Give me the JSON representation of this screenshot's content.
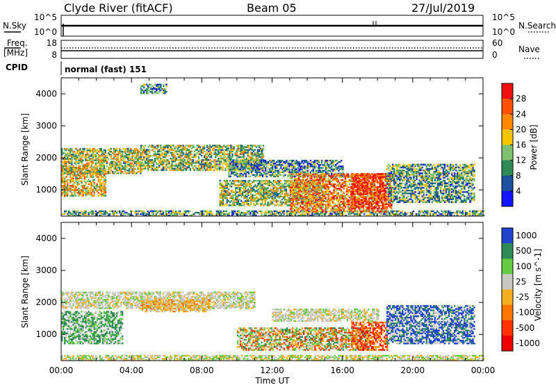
{
  "header": {
    "title": "Clyde River (fitACF)",
    "beam": "Beam 05",
    "date": "27/Jul/2019"
  },
  "nsky_panel": {
    "left_label": "N.Sky",
    "left_ticks": [
      "10^5",
      "10^0"
    ],
    "right_ticks": [
      "10^5",
      "10^0"
    ],
    "right_label": "N.Search"
  },
  "freq_panel": {
    "left_label_1": "Freq.",
    "left_label_2": "[MHz]",
    "left_ticks": [
      "18",
      "8"
    ],
    "right_ticks": [
      "60",
      "0"
    ],
    "right_label": "Nave"
  },
  "cpid": {
    "label": "CPID",
    "value": "normal (fast) 151"
  },
  "chart_data": [
    {
      "type": "heatmap",
      "name": "power",
      "ylabel": "Slant Range [km]",
      "xlabel": "Time UT",
      "x_ticks": [
        "00:00",
        "04:00",
        "08:00",
        "12:00",
        "16:00",
        "20:00",
        "00:00"
      ],
      "xlim_hours": [
        0,
        24
      ],
      "y_ticks": [
        1000,
        2000,
        3000,
        4000
      ],
      "ylim": [
        180,
        4500
      ],
      "colorbar": {
        "label": "Power [dB]",
        "ticks": [
          "4",
          "8",
          "12",
          "16",
          "20",
          "24",
          "28"
        ],
        "range": [
          0,
          30
        ],
        "colors": [
          "#1414ff",
          "#1e50a0",
          "#2e8b57",
          "#7cc070",
          "#f5c400",
          "#ff8800",
          "#ff5000",
          "#ee1010"
        ]
      },
      "echo_regions": [
        {
          "t": [
            0.0,
            24.0
          ],
          "r": [
            180,
            320
          ],
          "level": 0.35
        },
        {
          "t": [
            0.0,
            2.5
          ],
          "r": [
            800,
            1700
          ],
          "level": 0.55
        },
        {
          "t": [
            0.0,
            4.5
          ],
          "r": [
            1500,
            2300
          ],
          "level": 0.5
        },
        {
          "t": [
            4.5,
            11.5
          ],
          "r": [
            1600,
            2400
          ],
          "level": 0.45
        },
        {
          "t": [
            4.5,
            6.0
          ],
          "r": [
            4000,
            4300
          ],
          "level": 0.3
        },
        {
          "t": [
            9.5,
            16.0
          ],
          "r": [
            1400,
            1900
          ],
          "level": 0.3
        },
        {
          "t": [
            9.0,
            15.0
          ],
          "r": [
            500,
            1300
          ],
          "level": 0.45
        },
        {
          "t": [
            13.0,
            18.5
          ],
          "r": [
            300,
            1500
          ],
          "level": 0.7
        },
        {
          "t": [
            16.5,
            18.8
          ],
          "r": [
            400,
            1500
          ],
          "level": 0.9
        },
        {
          "t": [
            18.5,
            23.5
          ],
          "r": [
            600,
            1800
          ],
          "level": 0.35
        }
      ]
    },
    {
      "type": "heatmap",
      "name": "velocity",
      "ylabel": "Slant Range [km]",
      "xlabel": "Time UT",
      "x_ticks": [
        "00:00",
        "04:00",
        "08:00",
        "12:00",
        "16:00",
        "20:00",
        "00:00"
      ],
      "xlim_hours": [
        0,
        24
      ],
      "y_ticks": [
        1000,
        2000,
        3000,
        4000
      ],
      "ylim": [
        180,
        4500
      ],
      "colorbar": {
        "label": "Velocity [m s^-1]",
        "ticks": [
          "1000",
          "500",
          "100",
          "25",
          "-25",
          "-100",
          "-500",
          "-1000"
        ],
        "colors": [
          "#2244cc",
          "#2e8b57",
          "#66cc44",
          "#c8c8c0",
          "#f5b020",
          "#ff7700",
          "#ff3300",
          "#ee0000"
        ]
      },
      "echo_regions": [
        {
          "t": [
            0.0,
            24.0
          ],
          "r": [
            180,
            320
          ],
          "v": "low_pos"
        },
        {
          "t": [
            0.0,
            11.0
          ],
          "r": [
            1800,
            2300
          ],
          "v": "near_zero"
        },
        {
          "t": [
            0.0,
            3.5
          ],
          "r": [
            700,
            1700
          ],
          "v": "pos"
        },
        {
          "t": [
            4.5,
            8.5
          ],
          "r": [
            1700,
            2100
          ],
          "v": "neg_small"
        },
        {
          "t": [
            10.0,
            17.5
          ],
          "r": [
            500,
            1200
          ],
          "v": "mixed"
        },
        {
          "t": [
            12.0,
            18.0
          ],
          "r": [
            1400,
            1800
          ],
          "v": "near_zero"
        },
        {
          "t": [
            16.5,
            18.5
          ],
          "r": [
            500,
            1400
          ],
          "v": "neg"
        },
        {
          "t": [
            18.5,
            23.5
          ],
          "r": [
            700,
            1900
          ],
          "v": "fast_pos"
        }
      ]
    }
  ],
  "colors": {
    "frame": "#000000",
    "background": "#ffffff"
  }
}
